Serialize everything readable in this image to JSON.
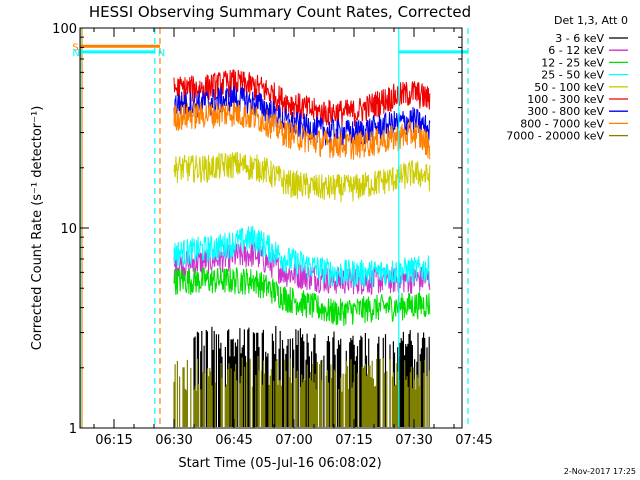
{
  "chart_data": {
    "type": "line",
    "title": "HESSI Observing Summary Count Rates, Corrected",
    "xlabel": "Start Time (05-Jul-16 06:08:02)",
    "ylabel": "Corrected Count Rate (s⁻¹ detector⁻¹)",
    "yscale": "log",
    "ylim": [
      1,
      100
    ],
    "xlim_minutes": [
      6.5,
      102
    ],
    "y_tick_labels": [
      "1",
      "10",
      "100"
    ],
    "x_ticks": [
      {
        "label": "06:15",
        "minute": 15
      },
      {
        "label": "06:30",
        "minute": 30
      },
      {
        "label": "06:45",
        "minute": 45
      },
      {
        "label": "07:00",
        "minute": 60
      },
      {
        "label": "07:15",
        "minute": 75
      },
      {
        "label": "07:30",
        "minute": 90
      },
      {
        "label": "07:45",
        "minute": 105
      }
    ],
    "legend_title": "Det 1,3, Att 0",
    "series": [
      {
        "name": "3 - 6 keV",
        "color": "#000000",
        "style": "noise",
        "points": [
          [
            35,
            2.2
          ],
          [
            50,
            2.3
          ],
          [
            70,
            2.1
          ],
          [
            85,
            2.2
          ],
          [
            94,
            2.1
          ]
        ]
      },
      {
        "name": "6 - 12 keV",
        "color": "#cc33cc",
        "points": [
          [
            30,
            6.5
          ],
          [
            40,
            7
          ],
          [
            50,
            7.5
          ],
          [
            58,
            6
          ],
          [
            70,
            5.5
          ],
          [
            80,
            5.5
          ],
          [
            94,
            5.6
          ]
        ]
      },
      {
        "name": "12 - 25 keV",
        "color": "#00dd00",
        "points": [
          [
            30,
            5.5
          ],
          [
            40,
            5.5
          ],
          [
            50,
            5.5
          ],
          [
            58,
            4.5
          ],
          [
            70,
            3.8
          ],
          [
            80,
            4.0
          ],
          [
            94,
            4.2
          ]
        ]
      },
      {
        "name": "25 - 50 keV",
        "color": "#00ffff",
        "points": [
          [
            30,
            7.5
          ],
          [
            40,
            8
          ],
          [
            50,
            9
          ],
          [
            58,
            7
          ],
          [
            70,
            6
          ],
          [
            80,
            6
          ],
          [
            94,
            6.3
          ]
        ]
      },
      {
        "name": "50 - 100 keV",
        "color": "#cccc00",
        "points": [
          [
            30,
            20
          ],
          [
            38,
            20
          ],
          [
            45,
            21
          ],
          [
            52,
            20
          ],
          [
            58,
            17
          ],
          [
            66,
            16
          ],
          [
            75,
            16
          ],
          [
            86,
            18
          ],
          [
            90,
            19
          ],
          [
            94,
            18
          ]
        ]
      },
      {
        "name": "100 - 300 keV",
        "color": "#ee0000",
        "points": [
          [
            30,
            50
          ],
          [
            36,
            50
          ],
          [
            45,
            54
          ],
          [
            52,
            50
          ],
          [
            58,
            43
          ],
          [
            66,
            38
          ],
          [
            75,
            38
          ],
          [
            84,
            45
          ],
          [
            90,
            48
          ],
          [
            94,
            44
          ]
        ]
      },
      {
        "name": "300 - 800 keV",
        "color": "#0000ee",
        "points": [
          [
            30,
            42
          ],
          [
            36,
            42
          ],
          [
            45,
            45
          ],
          [
            52,
            41
          ],
          [
            58,
            34
          ],
          [
            66,
            31
          ],
          [
            75,
            30
          ],
          [
            84,
            33
          ],
          [
            90,
            35
          ],
          [
            94,
            31
          ]
        ]
      },
      {
        "name": "800 - 7000 keV",
        "color": "#ff8000",
        "points": [
          [
            30,
            36
          ],
          [
            36,
            37
          ],
          [
            45,
            38
          ],
          [
            52,
            35
          ],
          [
            58,
            30
          ],
          [
            66,
            27
          ],
          [
            75,
            26
          ],
          [
            84,
            28
          ],
          [
            90,
            30
          ],
          [
            94,
            26
          ]
        ]
      },
      {
        "name": "7000 - 20000 keV",
        "color": "#808000",
        "style": "noise",
        "points": [
          [
            30,
            1.5
          ],
          [
            50,
            1.6
          ],
          [
            70,
            1.5
          ],
          [
            85,
            1.6
          ],
          [
            94,
            1.5
          ]
        ]
      }
    ],
    "flag_bars": [
      {
        "label": "S",
        "color": "#ff8000",
        "start": 6.6,
        "end": 26.5,
        "y": 81
      },
      {
        "label": "N",
        "color": "#00ffff",
        "start": 6.6,
        "end": 25.2,
        "y": 76
      },
      {
        "label": "",
        "color": "#00ffff",
        "start": 86.2,
        "end": 103.5,
        "y": 76
      }
    ],
    "vlines": [
      {
        "minute": 6.6,
        "color": "#00ffff",
        "dash": "solid"
      },
      {
        "minute": 7.0,
        "color": "#ff8000",
        "dash": "solid"
      },
      {
        "minute": 25.2,
        "color": "#00ffff",
        "dash": "dashed"
      },
      {
        "minute": 26.5,
        "color": "#ff8000",
        "dash": "dashed"
      },
      {
        "minute": 86.2,
        "color": "#00ffff",
        "dash": "solid"
      },
      {
        "minute": 103.5,
        "color": "#00ffff",
        "dash": "dashed"
      }
    ],
    "footer_date": "2-Nov-2017 17:25"
  }
}
